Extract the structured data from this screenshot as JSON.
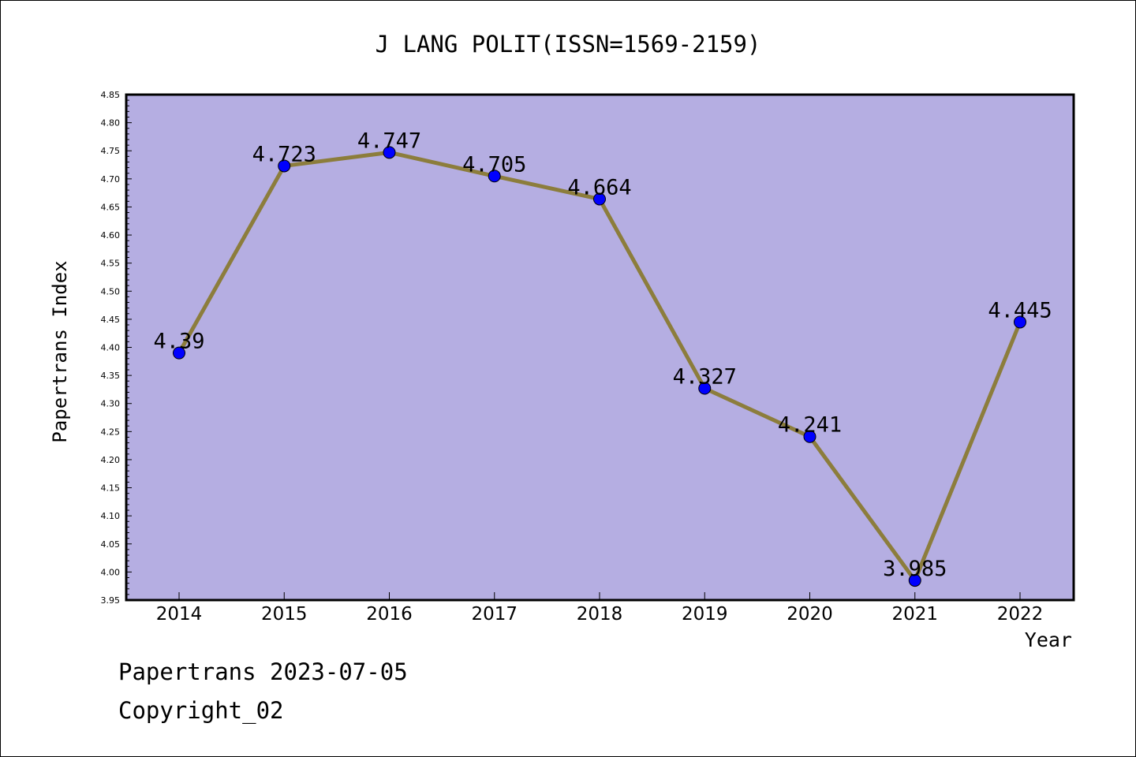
{
  "chart_data": {
    "type": "line",
    "title": "J LANG POLIT(ISSN=1569-2159)",
    "xlabel": "Year",
    "ylabel": "Papertrans Index",
    "categories": [
      "2014",
      "2015",
      "2016",
      "2017",
      "2018",
      "2019",
      "2020",
      "2021",
      "2022"
    ],
    "values": [
      4.39,
      4.723,
      4.747,
      4.705,
      4.664,
      4.327,
      4.241,
      3.985,
      4.445
    ],
    "data_labels": [
      "4.39",
      "4.723",
      "4.747",
      "4.705",
      "4.664",
      "4.327",
      "4.241",
      "3.985",
      "4.445"
    ],
    "ylim": [
      3.95,
      4.85
    ],
    "yticks": [
      "3.95",
      "4.00",
      "4.05",
      "4.10",
      "4.15",
      "4.20",
      "4.25",
      "4.30",
      "4.35",
      "4.40",
      "4.45",
      "4.50",
      "4.55",
      "4.60",
      "4.65",
      "4.70",
      "4.75",
      "4.80",
      "4.85"
    ],
    "grid": false,
    "colors": {
      "plot_background": "#b5aee2",
      "line": "#8c7d3c",
      "marker": "#0000ff"
    }
  },
  "footer": {
    "line1": "Papertrans 2023-07-05",
    "line2": "Copyright_02"
  }
}
